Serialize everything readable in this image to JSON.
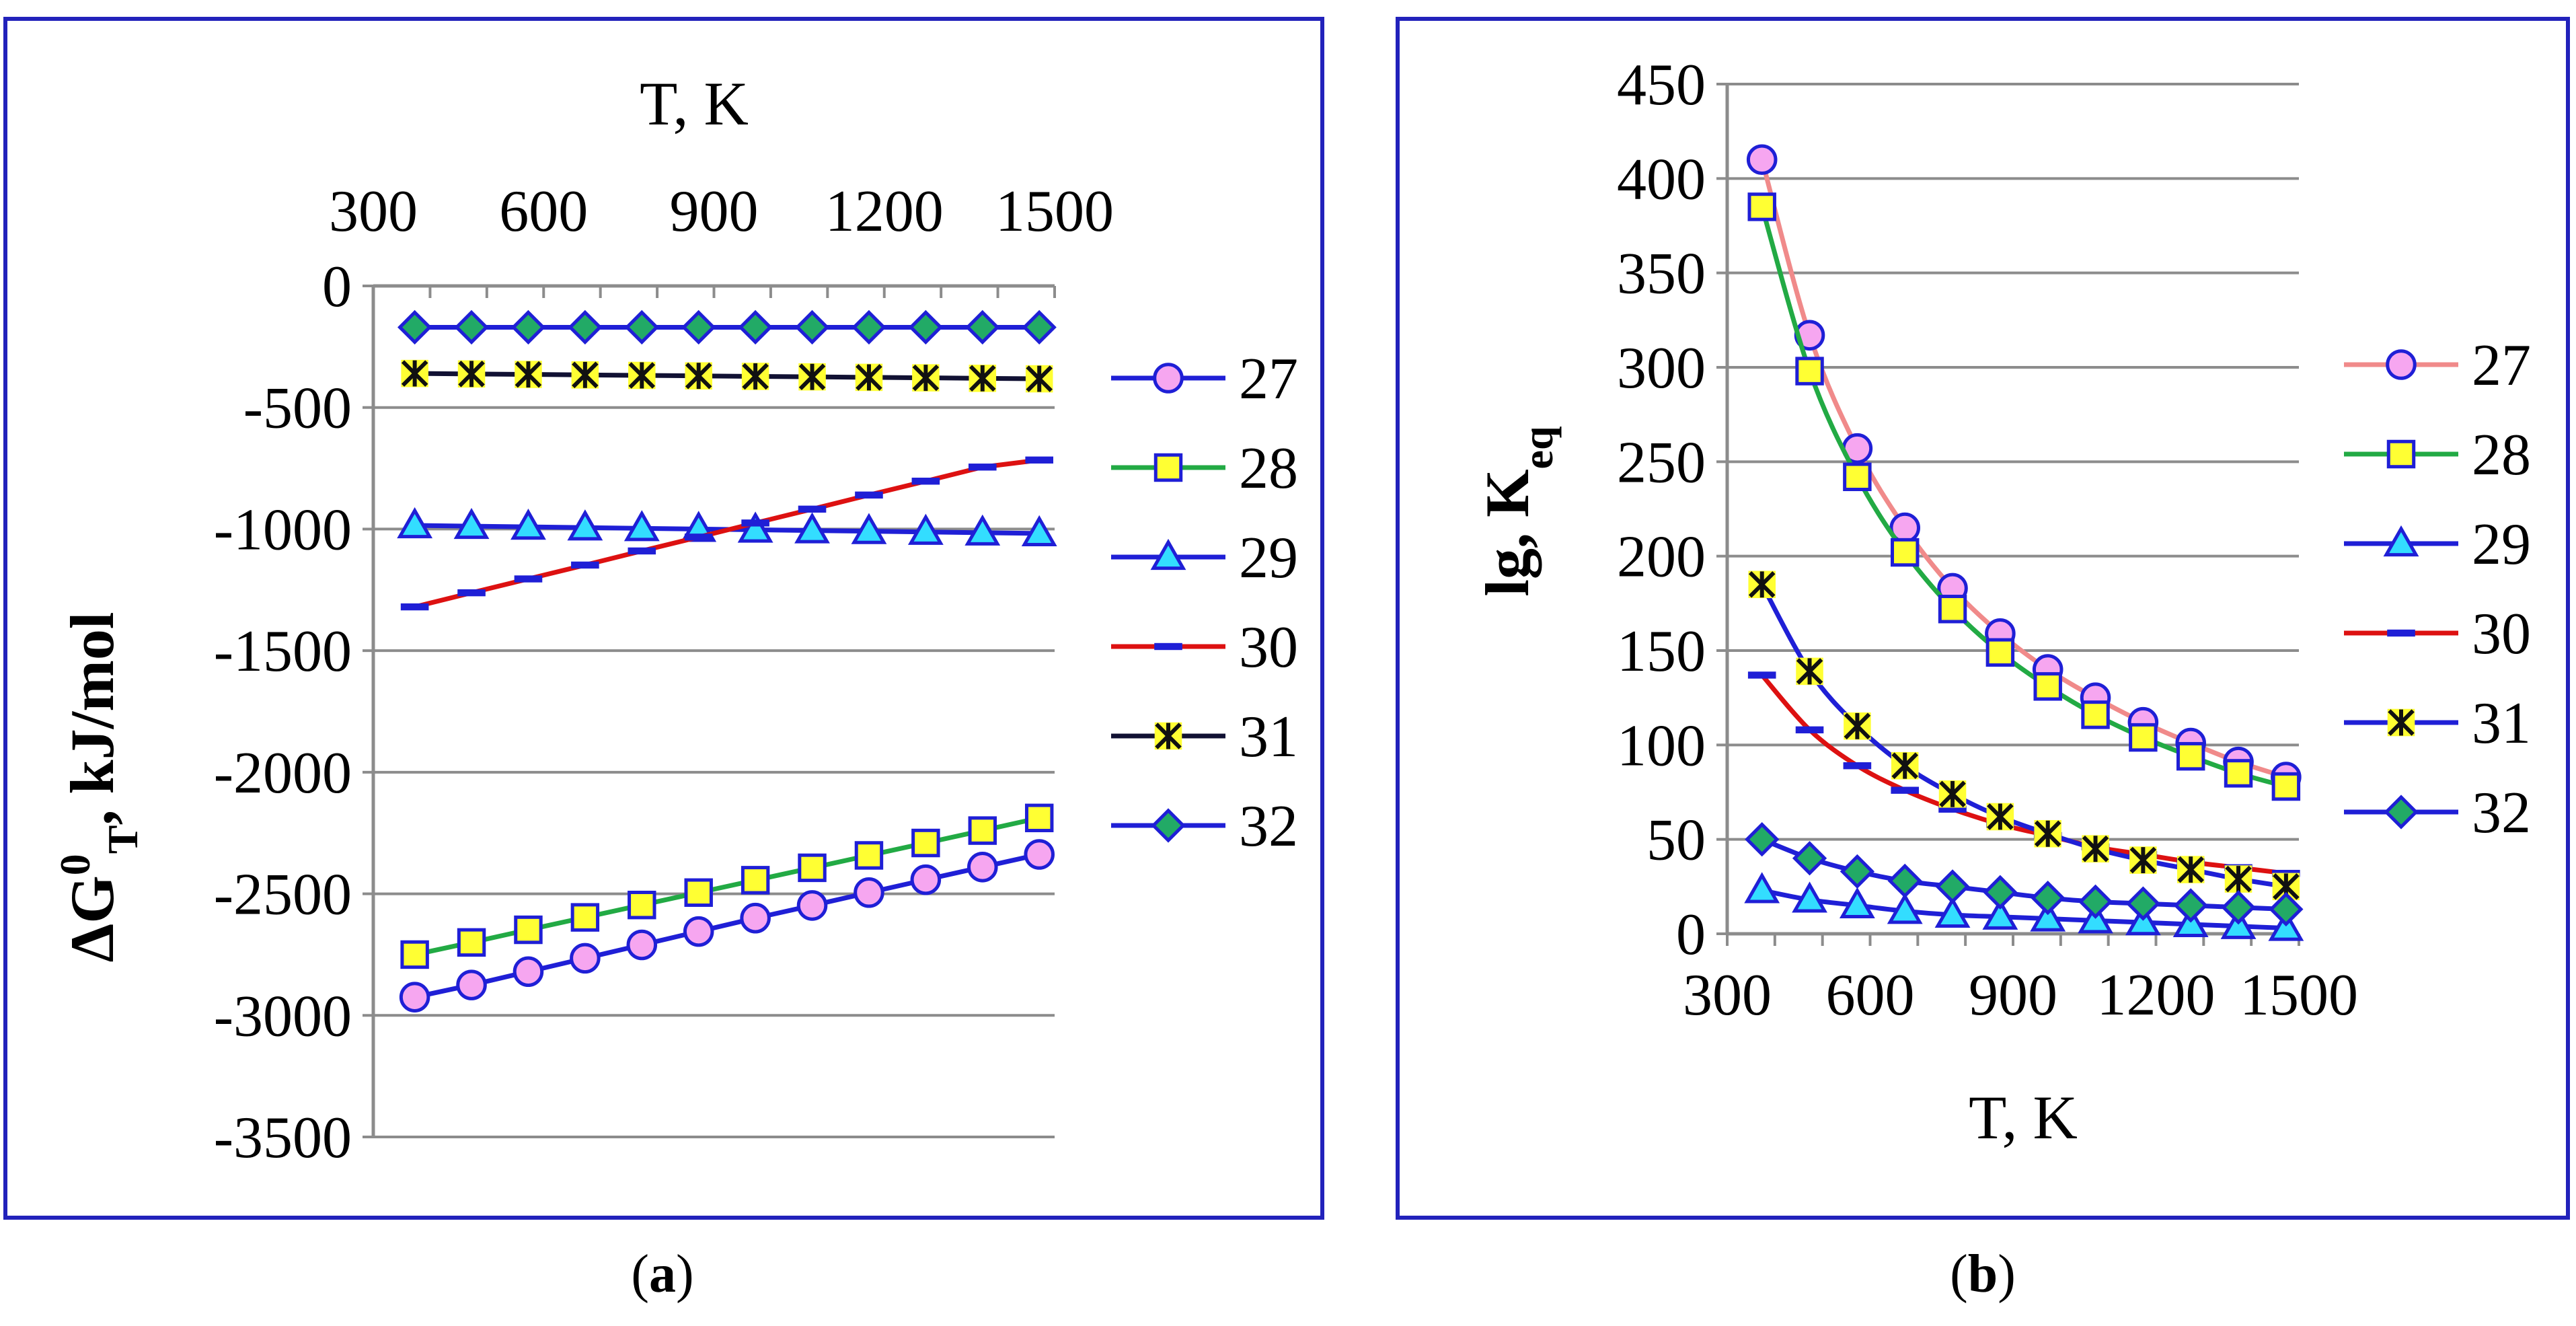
{
  "chart_data": [
    {
      "type": "line",
      "panel": "(a)",
      "caption": {
        "open": "(",
        "letter": "a",
        "close": ")"
      },
      "xlabel": "T, K",
      "ylabel_main": "ΔG",
      "ylabel_sup": "0",
      "ylabel_sub": "T",
      "ylabel_rest": ", kJ/mol",
      "x_axis_position": "top",
      "xlim": [
        300,
        1500
      ],
      "ylim": [
        -3500,
        0
      ],
      "xticks": [
        300,
        600,
        900,
        1200,
        1500
      ],
      "yticks": [
        0,
        -500,
        -1000,
        -1500,
        -2000,
        -2500,
        -3000,
        -3500
      ],
      "x": [
        373,
        473,
        573,
        673,
        773,
        873,
        973,
        1073,
        1173,
        1273,
        1373,
        1473
      ],
      "grid": "horizontal",
      "legend": "right",
      "series": [
        {
          "name": "27",
          "marker": "circle",
          "line_color": "#1f1fd6",
          "fill": "#f6a6f0",
          "values": [
            -2925,
            -2875,
            -2820,
            -2765,
            -2710,
            -2655,
            -2600,
            -2548,
            -2495,
            -2442,
            -2390,
            -2338
          ]
        },
        {
          "name": "28",
          "marker": "square",
          "line_color": "#22aa44",
          "fill": "#ffff33",
          "values": [
            -2750,
            -2700,
            -2648,
            -2597,
            -2546,
            -2495,
            -2444,
            -2393,
            -2342,
            -2291,
            -2240,
            -2188
          ]
        },
        {
          "name": "29",
          "marker": "triangle",
          "line_color": "#1f1fd6",
          "fill": "#33ddff",
          "values": [
            -985,
            -988,
            -991,
            -994,
            -997,
            -1000,
            -1003,
            -1006,
            -1009,
            -1012,
            -1015,
            -1018
          ]
        },
        {
          "name": "30",
          "marker": "dash",
          "line_color": "#dd1111",
          "fill": "#1f1fd6",
          "values": [
            -1320,
            -1262,
            -1205,
            -1148,
            -1090,
            -1033,
            -975,
            -918,
            -860,
            -803,
            -745,
            -716
          ]
        },
        {
          "name": "31",
          "marker": "asterisk",
          "line_color": "#111133",
          "fill": "#ffff33",
          "values": [
            -360,
            -362,
            -364,
            -366,
            -368,
            -370,
            -372,
            -374,
            -376,
            -378,
            -380,
            -382
          ]
        },
        {
          "name": "32",
          "marker": "diamond",
          "line_color": "#1f1fd6",
          "fill": "#22aa66",
          "values": [
            -170,
            -170,
            -170,
            -170,
            -170,
            -170,
            -170,
            -170,
            -170,
            -170,
            -170,
            -170
          ]
        }
      ]
    },
    {
      "type": "line",
      "panel": "(b)",
      "caption": {
        "open": "(",
        "letter": "b",
        "close": ")"
      },
      "xlabel": "T, K",
      "ylabel_main": "lg, K",
      "ylabel_sub": "eq",
      "x_axis_position": "bottom",
      "xlim": [
        300,
        1500
      ],
      "ylim": [
        0,
        450
      ],
      "xticks": [
        300,
        600,
        900,
        1200,
        1500
      ],
      "yticks": [
        0,
        50,
        100,
        150,
        200,
        250,
        300,
        350,
        400,
        450
      ],
      "x": [
        373,
        473,
        573,
        673,
        773,
        873,
        973,
        1073,
        1173,
        1273,
        1373,
        1473
      ],
      "grid": "horizontal",
      "legend": "right",
      "series": [
        {
          "name": "27",
          "marker": "circle",
          "line_color": "#f08a8a",
          "fill": "#f6a6f0",
          "values": [
            410,
            317,
            257,
            215,
            183,
            159,
            140,
            125,
            112,
            101,
            91,
            83
          ]
        },
        {
          "name": "28",
          "marker": "square",
          "line_color": "#22aa44",
          "fill": "#ffff33",
          "values": [
            385,
            298,
            242,
            202,
            172,
            149,
            131,
            116,
            104,
            94,
            85,
            78
          ]
        },
        {
          "name": "29",
          "marker": "triangle",
          "line_color": "#1f1fd6",
          "fill": "#33ddff",
          "values": [
            23,
            18,
            15,
            12,
            10,
            9,
            8,
            7,
            6,
            5,
            4,
            3
          ]
        },
        {
          "name": "30",
          "marker": "dash",
          "line_color": "#dd1111",
          "fill": "#1f1fd6",
          "values": [
            137,
            108,
            89,
            76,
            66,
            58,
            52,
            46,
            42,
            38,
            35,
            32
          ]
        },
        {
          "name": "31",
          "marker": "asterisk",
          "line_color": "#1f1fd6",
          "fill": "#ffff33",
          "values": [
            185,
            139,
            110,
            89,
            74,
            62,
            53,
            45,
            39,
            34,
            29,
            25
          ]
        },
        {
          "name": "32",
          "marker": "diamond",
          "line_color": "#1f1fd6",
          "fill": "#22aa66",
          "values": [
            50,
            40,
            33,
            28,
            25,
            22,
            19,
            17,
            16,
            15,
            14,
            13
          ]
        }
      ]
    }
  ]
}
